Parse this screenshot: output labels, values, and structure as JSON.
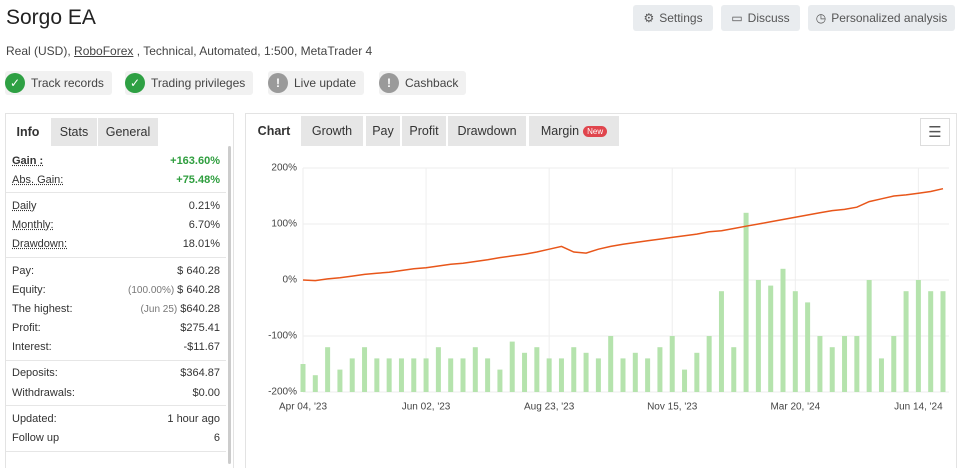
{
  "header": {
    "title": "Sorgo EA",
    "buttons": [
      "Settings",
      "Discuss",
      "Personalized analysis"
    ],
    "subtitle_start": "Real (USD),",
    "broker": "RoboForex",
    "subtitle_end": ", Technical, Automated, 1:500, MetaTrader 4",
    "badges": [
      {
        "label": "Track records",
        "ok": true
      },
      {
        "label": "Trading privileges",
        "ok": true
      },
      {
        "label": "Live update",
        "ok": false
      },
      {
        "label": "Cashback",
        "ok": false
      }
    ]
  },
  "stats": {
    "tabs": [
      "Info",
      "Stats",
      "General"
    ],
    "groups": [
      [
        {
          "label": "Gain :",
          "value": "+163.60%"
        },
        {
          "label": "Abs. Gain:",
          "value": "+75.48%"
        }
      ],
      [
        {
          "label": "Daily",
          "value": "0.21%"
        },
        {
          "label": "Monthly:",
          "value": "6.70%"
        },
        {
          "label": "Drawdown:",
          "value": "18.01%"
        }
      ],
      [
        {
          "label": "Pay:",
          "value": "$ 640.28"
        },
        {
          "label": "Equity:",
          "note": "(100.00%)",
          "value": "$ 640.28"
        },
        {
          "label": "The highest:",
          "note": "(Jun 25)",
          "value": "$640.28"
        },
        {
          "label": "Profit:",
          "value": "$275.41"
        },
        {
          "label": "Interest:",
          "value": "-$11.67"
        }
      ],
      [
        {
          "label": "Deposits:",
          "value": "$364.87"
        },
        {
          "label": "Withdrawals:",
          "value": "$0.00"
        }
      ],
      [
        {
          "label": "Updated:",
          "value": "1 hour ago"
        },
        {
          "label": "Follow up",
          "value": "6"
        }
      ]
    ]
  },
  "chart_tabs": {
    "tabs": [
      "Chart",
      "Growth",
      "Pay",
      "Profit",
      "Drawdown",
      "Margin"
    ],
    "badge": "New"
  },
  "chart_data": {
    "type": "combo",
    "categories": [
      "Apr 04, '23",
      null,
      null,
      null,
      null,
      null,
      null,
      null,
      null,
      null,
      "Jun 02, '23",
      null,
      null,
      null,
      null,
      null,
      null,
      null,
      null,
      null,
      "Aug 23, '23",
      null,
      null,
      null,
      null,
      null,
      null,
      null,
      null,
      null,
      "Nov 15, '23",
      null,
      null,
      null,
      null,
      null,
      null,
      null,
      null,
      null,
      "Mar 20, '24",
      null,
      null,
      null,
      null,
      null,
      null,
      null,
      null,
      null,
      "Jun 14, '24",
      null,
      null
    ],
    "series": [
      {
        "type": "bar",
        "color": "#b5e3ad",
        "values": [
          -150,
          -170,
          -120,
          -160,
          -140,
          -120,
          -140,
          -140,
          -140,
          -140,
          -140,
          -120,
          -140,
          -140,
          -120,
          -140,
          -160,
          -110,
          -130,
          -120,
          -140,
          -140,
          -120,
          -130,
          -140,
          -100,
          -140,
          -130,
          -140,
          -120,
          -100,
          -160,
          -130,
          -100,
          -20,
          -120,
          120,
          0,
          -10,
          20,
          -20,
          -40,
          -100,
          -120,
          -100,
          -100,
          0,
          -140,
          -100,
          -20,
          0,
          -20,
          -20
        ]
      },
      {
        "type": "line",
        "color": "#e8561a",
        "values": [
          0,
          -1,
          2,
          4,
          7,
          10,
          12,
          14,
          17,
          20,
          22,
          25,
          28,
          30,
          33,
          36,
          40,
          43,
          46,
          50,
          55,
          60,
          50,
          48,
          55,
          60,
          64,
          67,
          70,
          73,
          76,
          79,
          82,
          86,
          88,
          92,
          96,
          100,
          104,
          108,
          112,
          116,
          120,
          124,
          126,
          130,
          140,
          145,
          150,
          152,
          155,
          158,
          163
        ]
      }
    ],
    "ylim": [
      -200,
      200
    ],
    "yticks": [
      {
        "value": -200,
        "label": "-200%"
      },
      {
        "value": -100,
        "label": "-100%"
      },
      {
        "value": 0,
        "label": "0%"
      },
      {
        "value": 100,
        "label": "100%"
      },
      {
        "value": 200,
        "label": "200%"
      }
    ],
    "grid": true
  }
}
